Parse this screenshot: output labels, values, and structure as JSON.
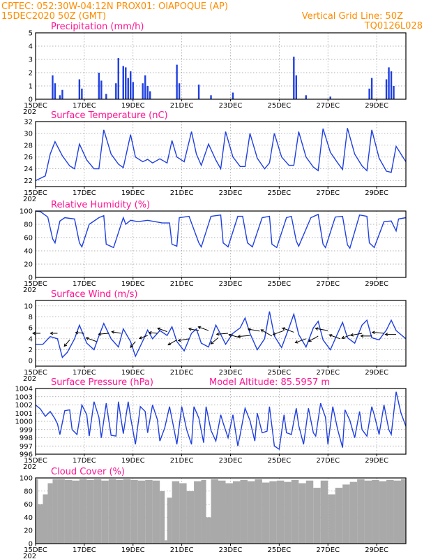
{
  "header": {
    "line1_left": "CPTEC:  052:30W-04:12N  PROX01: OIAPOQUE (AP)",
    "line2_left": "15DEC2020 50Z (GMT)",
    "line1_right": "Vertical Grid Line: 50Z",
    "line2_right": "TQ0126L028"
  },
  "colors": {
    "header": "#ff8c00",
    "title": "#ff1493",
    "series": "#1f3fe0",
    "cloud": "#a9a9a9",
    "wind_arrow": "#000000"
  },
  "x_axis": {
    "ticks": [
      "15DEC",
      "17DEC",
      "19DEC",
      "21DEC",
      "23DEC",
      "25DEC",
      "27DEC",
      "29DEC"
    ],
    "first_tick_suffix": "202",
    "range_days": [
      0,
      15.2
    ],
    "tick_days": [
      0,
      2,
      4,
      6,
      8,
      10,
      12,
      14
    ]
  },
  "chart_data": [
    {
      "type": "bar",
      "title": "Precipitation (mm/h)",
      "ylim": [
        0,
        5
      ],
      "yticks": [
        "0",
        "1",
        "2",
        "3",
        "4",
        "5"
      ],
      "x": [
        0.7,
        0.8,
        1.0,
        1.1,
        1.8,
        1.9,
        2.6,
        2.7,
        2.9,
        3.3,
        3.4,
        3.6,
        3.7,
        3.8,
        3.9,
        4.0,
        4.4,
        4.5,
        4.6,
        4.7,
        5.8,
        5.9,
        6.7,
        7.2,
        8.1,
        10.6,
        10.7,
        11.1,
        12.1,
        13.7,
        13.8,
        14.4,
        14.5,
        14.6,
        14.7
      ],
      "values": [
        1.8,
        1.2,
        0.3,
        0.7,
        1.5,
        0.8,
        2.0,
        1.4,
        0.4,
        1.2,
        3.1,
        2.5,
        2.4,
        1.6,
        2.1,
        1.3,
        1.2,
        1.8,
        1.0,
        0.6,
        2.6,
        1.2,
        1.1,
        0.3,
        0.5,
        3.2,
        1.8,
        0.3,
        0.2,
        0.8,
        1.6,
        1.5,
        2.4,
        2.1,
        1.0
      ]
    },
    {
      "type": "line",
      "title": "Surface Temperature (nC)",
      "ylim": [
        21,
        32
      ],
      "yticks": [
        "22",
        "24",
        "26",
        "28",
        "30",
        "32"
      ],
      "x": [
        0,
        0.4,
        0.6,
        0.8,
        1.1,
        1.4,
        1.6,
        1.8,
        2.1,
        2.4,
        2.6,
        2.8,
        3.1,
        3.4,
        3.6,
        3.9,
        4.1,
        4.4,
        4.6,
        4.8,
        5.1,
        5.4,
        5.6,
        5.8,
        6.1,
        6.4,
        6.6,
        6.8,
        7.1,
        7.4,
        7.6,
        7.8,
        8.1,
        8.4,
        8.6,
        8.8,
        9.1,
        9.4,
        9.6,
        9.8,
        10.1,
        10.4,
        10.6,
        10.8,
        11.1,
        11.4,
        11.6,
        11.8,
        12.1,
        12.4,
        12.6,
        12.8,
        13.1,
        13.4,
        13.6,
        13.8,
        14.1,
        14.4,
        14.6,
        14.8,
        15.2
      ],
      "values": [
        22.0,
        22.8,
        26.5,
        28.6,
        26.2,
        24.5,
        24.0,
        28.2,
        25.5,
        24.0,
        24.0,
        30.6,
        26.5,
        24.8,
        24.2,
        29.8,
        26.0,
        25.2,
        25.6,
        25.0,
        25.7,
        25.0,
        28.8,
        26.0,
        25.2,
        30.3,
        26.5,
        24.6,
        28.2,
        25.5,
        24.0,
        30.3,
        26.0,
        24.4,
        24.4,
        30.0,
        25.8,
        24.0,
        25.0,
        30.0,
        26.0,
        24.6,
        24.6,
        30.3,
        26.0,
        24.3,
        23.7,
        30.8,
        26.8,
        25.0,
        23.9,
        30.9,
        26.5,
        24.5,
        23.7,
        30.6,
        25.8,
        23.6,
        23.4,
        27.8,
        25.2
      ]
    },
    {
      "type": "line",
      "title": "Relative Humidity (%)",
      "ylim": [
        0,
        100
      ],
      "yticks": [
        "0",
        "20",
        "40",
        "60",
        "80",
        "100"
      ],
      "x": [
        0,
        0.2,
        0.5,
        0.7,
        0.8,
        1.0,
        1.2,
        1.6,
        1.8,
        1.9,
        2.2,
        2.6,
        2.8,
        2.9,
        3.2,
        3.6,
        3.7,
        3.9,
        4.2,
        4.6,
        5.2,
        5.5,
        5.6,
        5.8,
        5.9,
        6.3,
        6.7,
        6.8,
        7.2,
        7.6,
        7.7,
        7.9,
        8.3,
        8.5,
        8.7,
        8.9,
        9.3,
        9.6,
        9.7,
        9.9,
        10.3,
        10.5,
        10.7,
        10.8,
        11.3,
        11.6,
        11.8,
        11.9,
        12.3,
        12.6,
        12.8,
        12.9,
        13.3,
        13.6,
        13.7,
        13.9,
        14.3,
        14.6,
        14.8,
        14.9,
        15.2
      ],
      "values": [
        100,
        99,
        91,
        58,
        52,
        85,
        90,
        88,
        52,
        46,
        80,
        90,
        93,
        50,
        45,
        90,
        80,
        86,
        84,
        86,
        82,
        82,
        50,
        47,
        90,
        92,
        52,
        46,
        92,
        94,
        52,
        46,
        92,
        92,
        52,
        46,
        90,
        92,
        50,
        45,
        90,
        92,
        55,
        47,
        90,
        95,
        50,
        45,
        91,
        92,
        49,
        44,
        94,
        92,
        52,
        45,
        84,
        85,
        70,
        88,
        90
      ]
    },
    {
      "type": "line",
      "title": "Surface Wind (m/s)",
      "ylim": [
        -1,
        11
      ],
      "yticks": [
        "0",
        "2",
        "4",
        "6",
        "8",
        "10"
      ],
      "x": [
        0,
        0.3,
        0.6,
        0.9,
        1.1,
        1.3,
        1.6,
        1.8,
        2.1,
        2.4,
        2.6,
        2.8,
        3.1,
        3.4,
        3.6,
        3.9,
        4.1,
        4.4,
        4.6,
        4.8,
        5.1,
        5.4,
        5.6,
        5.8,
        6.1,
        6.4,
        6.6,
        6.8,
        7.1,
        7.4,
        7.6,
        7.8,
        8.1,
        8.4,
        8.6,
        8.8,
        9.1,
        9.4,
        9.6,
        9.8,
        10.1,
        10.4,
        10.6,
        10.8,
        11.1,
        11.4,
        11.6,
        11.8,
        12.1,
        12.4,
        12.6,
        12.8,
        13.1,
        13.4,
        13.6,
        13.8,
        14.1,
        14.4,
        14.6,
        14.8,
        15.2
      ],
      "values": [
        3.0,
        3.0,
        4.4,
        4.0,
        0.6,
        1.5,
        4.0,
        6.5,
        3.2,
        2.0,
        4.5,
        6.8,
        4.0,
        2.5,
        5.8,
        3.5,
        0.8,
        3.6,
        5.6,
        4.0,
        5.5,
        4.6,
        6.2,
        3.5,
        1.8,
        5.0,
        5.8,
        3.2,
        2.5,
        6.5,
        4.8,
        3.0,
        5.0,
        6.0,
        7.8,
        5.0,
        2.0,
        4.0,
        9.0,
        4.5,
        2.4,
        6.0,
        8.5,
        4.8,
        2.5,
        6.0,
        7.2,
        3.8,
        2.0,
        5.0,
        7.0,
        4.2,
        3.2,
        6.5,
        7.4,
        4.2,
        3.8,
        5.6,
        7.4,
        5.5,
        4.0
      ],
      "arrows_x": [
        0.2,
        0.9,
        1.4,
        2.0,
        2.5,
        3.0,
        3.5,
        4.1,
        4.6,
        5.0,
        5.4,
        5.8,
        6.3,
        6.7,
        7.1,
        7.5,
        7.9,
        8.4,
        8.8,
        9.2,
        9.7,
        10.2,
        10.6,
        11.1,
        11.6,
        12.0,
        12.5,
        13.0,
        13.4,
        13.8,
        14.3,
        14.8
      ],
      "arrows_y": [
        5.0,
        5.0,
        3.8,
        5.0,
        3.5,
        5.0,
        5.0,
        3.5,
        4.6,
        5.0,
        5.3,
        3.8,
        4.0,
        5.5,
        5.5,
        4.2,
        5.0,
        4.2,
        4.6,
        5.4,
        4.5,
        5.5,
        5.2,
        4.0,
        4.5,
        5.5,
        4.0,
        4.8,
        5.0,
        4.5,
        5.0,
        4.8
      ],
      "arrows_dir_deg": [
        180,
        180,
        230,
        175,
        160,
        185,
        170,
        230,
        200,
        175,
        160,
        210,
        190,
        170,
        160,
        220,
        185,
        165,
        185,
        170,
        150,
        200,
        160,
        200,
        210,
        170,
        160,
        200,
        190,
        180,
        175,
        180
      ],
      "arrows_speed": [
        4.5,
        4.2,
        5.0,
        5.2,
        6.5,
        6.0,
        5.5,
        4.6,
        5.2,
        5.0,
        6.0,
        6.0,
        6.5,
        6.0,
        6.5,
        5.8,
        6.8,
        7.0,
        7.2,
        7.0,
        7.5,
        7.0,
        7.2,
        6.8,
        6.5,
        7.5,
        6.8,
        6.6,
        6.8,
        6.5,
        7.0,
        6.5
      ]
    },
    {
      "type": "line",
      "title": "Surface Pressure (hPa)",
      "subtitle": "Model Altitude: 85.5957 m",
      "ylim": [
        996,
        1004
      ],
      "yticks": [
        "996",
        "997",
        "998",
        "999",
        "1000",
        "1001",
        "1002",
        "1003",
        "1004"
      ],
      "x": [
        0,
        0.2,
        0.4,
        0.6,
        0.8,
        0.9,
        1.0,
        1.2,
        1.4,
        1.5,
        1.7,
        1.9,
        2.1,
        2.2,
        2.4,
        2.6,
        2.7,
        2.9,
        3.1,
        3.3,
        3.4,
        3.6,
        3.8,
        3.9,
        4.1,
        4.3,
        4.5,
        4.6,
        4.8,
        5.0,
        5.1,
        5.3,
        5.5,
        5.7,
        5.8,
        6.0,
        6.2,
        6.4,
        6.5,
        6.7,
        6.9,
        7.0,
        7.2,
        7.4,
        7.6,
        7.7,
        7.9,
        8.1,
        8.3,
        8.4,
        8.6,
        8.8,
        9.0,
        9.1,
        9.3,
        9.5,
        9.6,
        9.8,
        10.0,
        10.2,
        10.3,
        10.5,
        10.7,
        10.8,
        11.0,
        11.2,
        11.4,
        11.5,
        11.7,
        11.9,
        12.0,
        12.2,
        12.4,
        12.6,
        12.7,
        12.9,
        13.1,
        13.3,
        13.4,
        13.6,
        13.8,
        13.9,
        14.1,
        14.3,
        14.5,
        14.6,
        14.8,
        15.0,
        15.2
      ],
      "values": [
        1002.0,
        1001.5,
        1000.6,
        1001.2,
        1000.3,
        999.7,
        998.4,
        1001.3,
        1001.4,
        999.0,
        998.4,
        1002.0,
        1000.8,
        998.2,
        1002.4,
        1000.5,
        998.0,
        1002.2,
        998.3,
        998.2,
        1002.4,
        998.5,
        1002.4,
        1000.5,
        997.2,
        1001.8,
        1001.2,
        998.6,
        1002.0,
        1000.2,
        997.6,
        999.2,
        1001.8,
        998.8,
        997.2,
        1001.8,
        999.0,
        997.2,
        1001.8,
        1000.4,
        997.4,
        1001.8,
        998.9,
        997.6,
        1000.8,
        999.8,
        998.0,
        1000.8,
        997.0,
        998.4,
        1001.6,
        1000.1,
        997.6,
        1001.0,
        998.6,
        998.8,
        1001.8,
        997.0,
        996.6,
        1000.8,
        998.6,
        998.4,
        1001.6,
        999.5,
        997.2,
        1001.6,
        998.6,
        998.2,
        1002.2,
        1000.5,
        997.2,
        1001.8,
        999.0,
        996.8,
        1001.4,
        1000.1,
        998.0,
        1001.2,
        999.0,
        998.2,
        1001.8,
        1000.8,
        998.4,
        1002.0,
        999.0,
        998.4,
        1003.6,
        1001.0,
        999.4
      ]
    },
    {
      "type": "area",
      "title": "Cloud Cover (%)",
      "ylim": [
        0,
        100
      ],
      "yticks": [
        "0",
        "20",
        "40",
        "60",
        "80",
        "100"
      ],
      "x": [
        0,
        0.1,
        0.3,
        0.5,
        0.7,
        0.9,
        1.2,
        1.5,
        1.8,
        2.1,
        2.4,
        2.7,
        3.0,
        3.3,
        3.6,
        3.9,
        4.2,
        4.5,
        4.8,
        5.1,
        5.3,
        5.4,
        5.6,
        5.9,
        6.2,
        6.5,
        6.8,
        7.0,
        7.2,
        7.5,
        7.8,
        8.1,
        8.4,
        8.7,
        9.0,
        9.3,
        9.6,
        9.9,
        10.2,
        10.5,
        10.8,
        11.1,
        11.4,
        11.7,
        12.0,
        12.3,
        12.6,
        12.9,
        13.2,
        13.5,
        13.8,
        14.1,
        14.4,
        14.7,
        15.0,
        15.2
      ],
      "values": [
        98,
        60,
        75,
        92,
        98,
        98,
        97,
        96,
        98,
        97,
        98,
        96,
        98,
        97,
        98,
        97,
        96,
        97,
        96,
        80,
        5,
        70,
        95,
        92,
        80,
        95,
        97,
        40,
        98,
        96,
        92,
        95,
        97,
        95,
        98,
        93,
        95,
        96,
        94,
        97,
        92,
        96,
        85,
        96,
        75,
        85,
        90,
        94,
        98,
        96,
        97,
        95,
        97,
        96,
        98,
        98
      ]
    }
  ]
}
